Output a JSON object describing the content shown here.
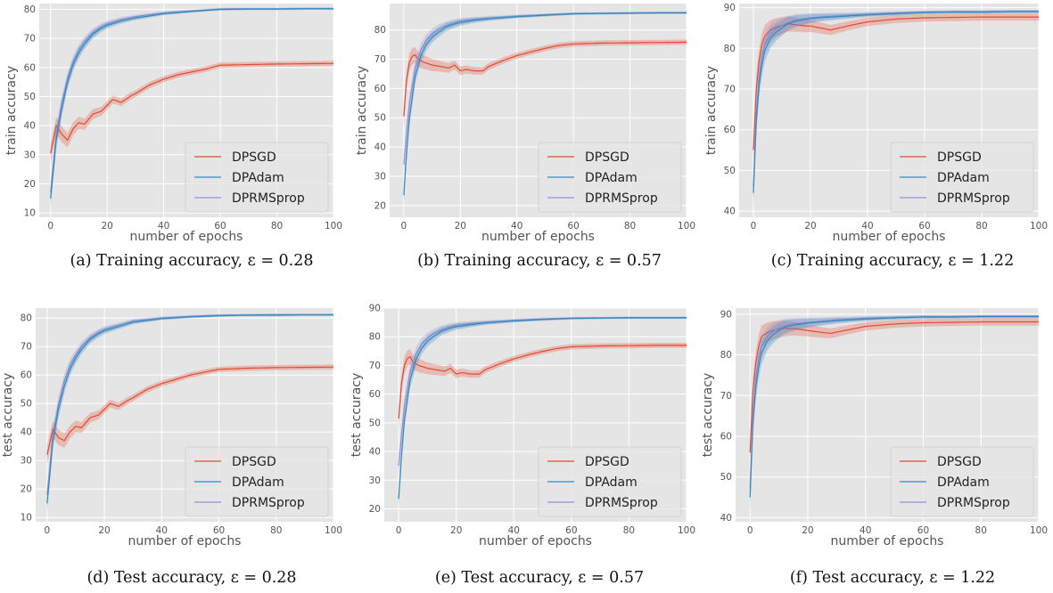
{
  "colors": {
    "panel_bg": "#e5e5e5",
    "grid": "#ffffff",
    "DPSGD": "#e24a33",
    "DPAdam": "#348abd",
    "DPRMSprop": "#988ed5"
  },
  "chart_data": [
    {
      "type": "line",
      "caption": "(a)  Training accuracy, ε = 0.28",
      "xlabel": "number of epochs",
      "ylabel": "train accuracy",
      "xlim": [
        -4,
        100
      ],
      "ylim": [
        8.5,
        82
      ],
      "xticks": [
        0,
        20,
        40,
        60,
        80,
        100
      ],
      "yticks": [
        10,
        20,
        30,
        40,
        50,
        60,
        70,
        80
      ],
      "grid": true,
      "legend_position": "bottom-right",
      "series": [
        {
          "name": "DPSGD",
          "x": [
            0,
            2,
            4,
            6,
            8,
            10,
            12,
            15,
            18,
            20,
            22,
            25,
            28,
            30,
            35,
            40,
            45,
            50,
            55,
            60,
            70,
            80,
            90,
            100
          ],
          "y": [
            30.5,
            40,
            37,
            35,
            39,
            41,
            40.5,
            44,
            45,
            47,
            49,
            48,
            50,
            51,
            54,
            56,
            57.5,
            58.5,
            59.5,
            60.8,
            61,
            61.2,
            61.3,
            61.4
          ]
        },
        {
          "name": "DPAdam",
          "x": [
            0,
            2,
            4,
            6,
            8,
            10,
            12,
            15,
            18,
            20,
            25,
            30,
            40,
            50,
            60,
            70,
            80,
            90,
            100
          ],
          "y": [
            15,
            35,
            46,
            55,
            61,
            65,
            68,
            71.5,
            73.5,
            74.5,
            76,
            77,
            78.5,
            79.3,
            80,
            80.1,
            80.1,
            80.2,
            80.2
          ]
        },
        {
          "name": "DPRMSprop",
          "x": [
            0,
            2,
            4,
            6,
            8,
            10,
            12,
            15,
            18,
            20,
            25,
            30,
            40,
            50,
            60,
            70,
            80,
            90,
            100
          ],
          "y": [
            17,
            37,
            48,
            56,
            62,
            66,
            69,
            72,
            74,
            75,
            76.5,
            77.5,
            78.8,
            79.5,
            80.1,
            80.2,
            80.2,
            80.3,
            80.3
          ]
        }
      ]
    },
    {
      "type": "line",
      "caption": "(b)  Training accuracy, ε = 0.57",
      "xlabel": "number of epochs",
      "ylabel": "train accuracy",
      "xlim": [
        -5,
        100
      ],
      "ylim": [
        16,
        89
      ],
      "xticks": [
        0,
        20,
        40,
        60,
        80,
        100
      ],
      "yticks": [
        20,
        30,
        40,
        50,
        60,
        70,
        80
      ],
      "grid": true,
      "legend_position": "bottom-right",
      "series": [
        {
          "name": "DPSGD",
          "x": [
            0,
            1,
            2,
            3,
            4,
            5,
            7,
            10,
            13,
            16,
            18,
            20,
            22,
            25,
            28,
            30,
            35,
            40,
            45,
            50,
            55,
            60,
            70,
            80,
            90,
            100
          ],
          "y": [
            50.5,
            63,
            69,
            71,
            71.5,
            70,
            69,
            68,
            67.5,
            67,
            68,
            66,
            66.5,
            66,
            66,
            67.5,
            69.5,
            71.2,
            72.5,
            73.7,
            74.7,
            75.2,
            75.5,
            75.6,
            75.7,
            75.8
          ]
        },
        {
          "name": "DPAdam",
          "x": [
            0,
            1,
            2,
            4,
            6,
            8,
            10,
            12,
            15,
            18,
            20,
            25,
            30,
            40,
            50,
            60,
            70,
            80,
            90,
            100
          ],
          "y": [
            23.5,
            38,
            50,
            64,
            71,
            75,
            77.5,
            79,
            81,
            82,
            82.5,
            83.3,
            83.8,
            84.5,
            85,
            85.5,
            85.6,
            85.7,
            85.8,
            85.8
          ]
        },
        {
          "name": "DPRMSprop",
          "x": [
            0,
            1,
            2,
            4,
            6,
            8,
            10,
            12,
            15,
            18,
            20,
            25,
            30,
            40,
            50,
            60,
            70,
            80,
            90,
            100
          ],
          "y": [
            34,
            45,
            55,
            67,
            73,
            76.5,
            78.5,
            80,
            81.5,
            82.5,
            83,
            83.6,
            84,
            84.7,
            85.2,
            85.6,
            85.7,
            85.8,
            85.9,
            85.9
          ]
        }
      ]
    },
    {
      "type": "line",
      "caption": "(c)  Training accuracy, ε = 1.22",
      "xlabel": "number of epochs",
      "ylabel": "train accuracy",
      "xlim": [
        -5,
        100
      ],
      "ylim": [
        38.5,
        91
      ],
      "xticks": [
        0,
        20,
        40,
        60,
        80,
        100
      ],
      "yticks": [
        40,
        50,
        60,
        70,
        80,
        90
      ],
      "grid": true,
      "legend_position": "bottom-right",
      "series": [
        {
          "name": "DPSGD",
          "x": [
            0,
            1,
            2,
            3,
            4,
            6,
            8,
            10,
            12,
            15,
            18,
            20,
            22,
            25,
            27,
            30,
            35,
            40,
            50,
            60,
            70,
            80,
            90,
            100
          ],
          "y": [
            55,
            70,
            77,
            81,
            83,
            84.5,
            85.2,
            85.6,
            86,
            85.8,
            85.5,
            85.5,
            85.2,
            84.8,
            84.5,
            85,
            85.8,
            86.5,
            87.2,
            87.5,
            87.6,
            87.7,
            87.7,
            87.7
          ]
        },
        {
          "name": "DPAdam",
          "x": [
            0,
            1,
            2,
            3,
            4,
            6,
            8,
            10,
            12,
            15,
            20,
            25,
            30,
            40,
            50,
            60,
            70,
            80,
            90,
            100
          ],
          "y": [
            44.5,
            62,
            71,
            76,
            79.5,
            82.5,
            84,
            85,
            86,
            86.7,
            87.3,
            87.6,
            87.8,
            88.2,
            88.5,
            88.8,
            88.9,
            88.9,
            89,
            89
          ]
        },
        {
          "name": "DPRMSprop",
          "x": [
            0,
            1,
            2,
            3,
            4,
            6,
            8,
            10,
            12,
            15,
            20,
            25,
            30,
            40,
            50,
            60,
            70,
            80,
            90,
            100
          ],
          "y": [
            46,
            64,
            73,
            78,
            81,
            83.5,
            84.8,
            85.6,
            86.3,
            87,
            87.5,
            87.8,
            88,
            88.4,
            88.7,
            88.9,
            89,
            89,
            89.1,
            89.1
          ]
        }
      ]
    },
    {
      "type": "line",
      "caption": "(d)  Test accuracy, ε = 0.28",
      "xlabel": "number of epochs",
      "ylabel": "test accuracy",
      "xlim": [
        -4,
        100
      ],
      "ylim": [
        8.5,
        83.5
      ],
      "xticks": [
        0,
        20,
        40,
        60,
        80,
        100
      ],
      "yticks": [
        10,
        20,
        30,
        40,
        50,
        60,
        70,
        80
      ],
      "grid": true,
      "legend_position": "bottom-right",
      "series": [
        {
          "name": "DPSGD",
          "x": [
            0,
            2,
            4,
            6,
            8,
            10,
            12,
            15,
            18,
            20,
            22,
            25,
            28,
            30,
            35,
            40,
            45,
            50,
            55,
            60,
            70,
            80,
            90,
            100
          ],
          "y": [
            32,
            41,
            38,
            37,
            40,
            42,
            41.5,
            45,
            46,
            48,
            50,
            49,
            51,
            52,
            55,
            57,
            58.5,
            60,
            61,
            62,
            62.4,
            62.6,
            62.7,
            62.8
          ]
        },
        {
          "name": "DPAdam",
          "x": [
            0,
            2,
            4,
            6,
            8,
            10,
            12,
            15,
            18,
            20,
            25,
            30,
            40,
            50,
            60,
            70,
            80,
            90,
            100
          ],
          "y": [
            15,
            37,
            48,
            56,
            62,
            66,
            69,
            72.5,
            74.5,
            75.5,
            77,
            78.5,
            79.8,
            80.4,
            80.8,
            81,
            81,
            81.1,
            81.1
          ]
        },
        {
          "name": "DPRMSprop",
          "x": [
            0,
            2,
            4,
            6,
            8,
            10,
            12,
            15,
            18,
            20,
            25,
            30,
            40,
            50,
            60,
            70,
            80,
            90,
            100
          ],
          "y": [
            18,
            39,
            50,
            58,
            63.5,
            67,
            70,
            73,
            75,
            76,
            77.5,
            79,
            80,
            80.6,
            81,
            81.1,
            81.2,
            81.2,
            81.2
          ]
        }
      ]
    },
    {
      "type": "line",
      "caption": "(e)  Test accuracy, ε = 0.57",
      "xlabel": "number of epochs",
      "ylabel": "test accuracy",
      "xlim": [
        -5,
        100
      ],
      "ylim": [
        15.5,
        90
      ],
      "xticks": [
        0,
        20,
        40,
        60,
        80,
        100
      ],
      "yticks": [
        20,
        30,
        40,
        50,
        60,
        70,
        80,
        90
      ],
      "grid": true,
      "legend_position": "bottom-right",
      "series": [
        {
          "name": "DPSGD",
          "x": [
            0,
            1,
            2,
            3,
            4,
            5,
            7,
            10,
            13,
            16,
            18,
            20,
            22,
            25,
            28,
            30,
            35,
            40,
            45,
            50,
            55,
            60,
            70,
            80,
            90,
            100
          ],
          "y": [
            51.5,
            64,
            70,
            72.5,
            73,
            71,
            70,
            69,
            68.5,
            68,
            69,
            67,
            67.5,
            67,
            67,
            68.5,
            70.5,
            72.3,
            73.7,
            74.9,
            75.9,
            76.5,
            76.8,
            76.9,
            77,
            77
          ]
        },
        {
          "name": "DPAdam",
          "x": [
            0,
            1,
            2,
            4,
            6,
            8,
            10,
            12,
            15,
            18,
            20,
            25,
            30,
            40,
            50,
            60,
            70,
            80,
            90,
            100
          ],
          "y": [
            23.5,
            39,
            51,
            65,
            72,
            76,
            78.5,
            80,
            82,
            83,
            83.5,
            84.2,
            84.8,
            85.5,
            86,
            86.4,
            86.5,
            86.6,
            86.6,
            86.6
          ]
        },
        {
          "name": "DPRMSprop",
          "x": [
            0,
            1,
            2,
            4,
            6,
            8,
            10,
            12,
            15,
            18,
            20,
            25,
            30,
            40,
            50,
            60,
            70,
            80,
            90,
            100
          ],
          "y": [
            35,
            46,
            56,
            68,
            74,
            77.5,
            79.5,
            81,
            82.5,
            83.5,
            84,
            84.6,
            85,
            85.7,
            86.2,
            86.5,
            86.6,
            86.7,
            86.7,
            86.7
          ]
        }
      ]
    },
    {
      "type": "line",
      "caption": "(f)  Test accuracy, ε = 1.22",
      "xlabel": "number of epochs",
      "ylabel": "test accuracy",
      "xlim": [
        -5,
        100
      ],
      "ylim": [
        39,
        91.5
      ],
      "xticks": [
        0,
        20,
        40,
        60,
        80,
        100
      ],
      "yticks": [
        40,
        50,
        60,
        70,
        80,
        90
      ],
      "grid": true,
      "legend_position": "bottom-right",
      "series": [
        {
          "name": "DPSGD",
          "x": [
            0,
            1,
            2,
            3,
            4,
            6,
            8,
            10,
            12,
            15,
            18,
            20,
            22,
            25,
            28,
            30,
            35,
            40,
            50,
            60,
            70,
            80,
            90,
            100
          ],
          "y": [
            56,
            71,
            78,
            82,
            84.5,
            85.5,
            86,
            86.3,
            86.5,
            86.5,
            86.2,
            86,
            85.8,
            85.5,
            85.3,
            85.6,
            86.3,
            87,
            87.6,
            87.9,
            88,
            88.1,
            88.1,
            88.1
          ]
        },
        {
          "name": "DPAdam",
          "x": [
            0,
            1,
            2,
            3,
            4,
            6,
            8,
            10,
            12,
            15,
            20,
            25,
            30,
            40,
            50,
            60,
            70,
            80,
            90,
            100
          ],
          "y": [
            45,
            63,
            72,
            77,
            80.5,
            83.5,
            85,
            86,
            86.8,
            87.3,
            87.8,
            88.1,
            88.4,
            88.8,
            89.1,
            89.3,
            89.3,
            89.4,
            89.4,
            89.4
          ]
        },
        {
          "name": "DPRMSprop",
          "x": [
            0,
            1,
            2,
            3,
            4,
            6,
            8,
            10,
            12,
            15,
            20,
            25,
            30,
            40,
            50,
            60,
            70,
            80,
            90,
            100
          ],
          "y": [
            47,
            65,
            74,
            79,
            82,
            84.5,
            85.8,
            86.6,
            87.2,
            87.6,
            88,
            88.3,
            88.6,
            89,
            89.2,
            89.4,
            89.4,
            89.5,
            89.5,
            89.5
          ]
        }
      ]
    }
  ]
}
